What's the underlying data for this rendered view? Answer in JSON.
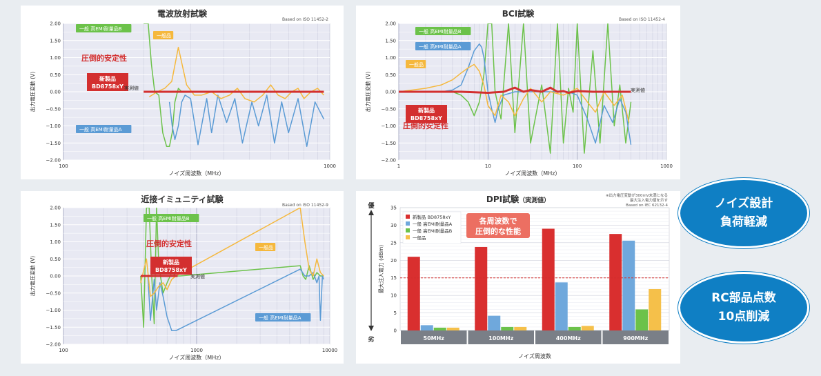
{
  "chart_data": [
    {
      "type": "line",
      "title": "電波放射試験",
      "note": "Based on ISO 11452-2",
      "xlabel": "ノイズ周波数（MHz）",
      "ylabel": "出力電圧変動 (V)",
      "x_scale": "log",
      "xlim": [
        100,
        1000
      ],
      "ylim": [
        -2.0,
        2.0
      ],
      "x_ticks": [
        "100",
        "1000"
      ],
      "y_ticks": [
        "2.00",
        "1.50",
        "1.00",
        "0.50",
        "0.00",
        "−0.50",
        "−1.00",
        "−1.50",
        "−2.00"
      ],
      "callouts": {
        "stable": "圧倒的安定性",
        "new_product": "新製品\nBD8758xY",
        "measured": "実測値"
      },
      "series": [
        {
          "name": "一般 高EMI耐量品B",
          "color": "#6cc24a",
          "x": [
            200,
            208,
            214,
            220,
            228,
            236,
            244,
            250,
            256,
            262,
            270,
            278,
            286,
            300,
            320,
            345,
            360,
            380,
            410,
            440,
            470,
            510,
            540,
            580,
            620,
            660,
            700,
            760,
            820,
            880,
            950
          ],
          "y": [
            2.0,
            2.0,
            0.8,
            0.0,
            -0.1,
            -1.2,
            -1.6,
            -1.6,
            -1.2,
            -0.3,
            0.1,
            0.0,
            0.0,
            0.0,
            0.0,
            0.0,
            0.0,
            0.0,
            0.0,
            0.0,
            0.0,
            0.0,
            0.0,
            0.0,
            0.0,
            0.0,
            0.0,
            0.0,
            0.0,
            0.0,
            0.0
          ]
        },
        {
          "name": "一般 高EMI耐量品A",
          "color": "#5b9bd5",
          "x": [
            250,
            256,
            262,
            270,
            278,
            286,
            300,
            320,
            345,
            360,
            380,
            410,
            440,
            470,
            510,
            540,
            580,
            620,
            660,
            700,
            760,
            820,
            880,
            950
          ],
          "y": [
            -0.3,
            -1.0,
            -1.4,
            -1.0,
            -0.3,
            -0.1,
            -0.2,
            -1.55,
            -0.2,
            -1.2,
            -0.1,
            -0.9,
            -0.2,
            -1.5,
            -0.3,
            -1.0,
            -0.1,
            -1.5,
            -0.3,
            -1.2,
            -0.2,
            -1.6,
            -0.3,
            -0.8
          ]
        },
        {
          "name": "一般品",
          "color": "#f5b83d",
          "x": [
            210,
            225,
            240,
            255,
            270,
            290,
            310,
            330,
            360,
            390,
            420,
            450,
            480,
            520,
            560,
            600,
            640,
            680,
            720,
            760,
            800,
            850,
            900,
            950
          ],
          "y": [
            -0.15,
            0.0,
            0.1,
            0.3,
            1.3,
            0.2,
            -0.1,
            -0.1,
            0.0,
            -0.2,
            -0.1,
            0.1,
            -0.2,
            -0.3,
            -0.1,
            0.2,
            -0.1,
            -0.2,
            0.0,
            0.1,
            -0.2,
            0.0,
            0.1,
            -0.1
          ]
        },
        {
          "name": "新製品 BD8758xY",
          "color": "#d32f2f",
          "x": [
            200,
            950
          ],
          "y": [
            0.0,
            0.0
          ]
        }
      ]
    },
    {
      "type": "line",
      "title": "BCI試験",
      "note": "Based on ISO 11452-4",
      "xlabel": "ノイズ周波数（MHz）",
      "ylabel": "出力電圧変動 (V)",
      "x_scale": "log",
      "xlim": [
        1,
        1000
      ],
      "ylim": [
        -2.0,
        2.0
      ],
      "x_ticks": [
        "1",
        "10",
        "100",
        "1000"
      ],
      "y_ticks": [
        "2.00",
        "1.50",
        "1.00",
        "0.50",
        "0.00",
        "−0.50",
        "−1.00",
        "−1.50",
        "−2.00"
      ],
      "callouts": {
        "stable": "圧倒的安定性",
        "new_product": "新製品\nBD8758xY",
        "measured": "実測値"
      },
      "series": [
        {
          "name": "一般 高EMI耐量品B",
          "color": "#6cc24a",
          "x": [
            1,
            2,
            3,
            4,
            5,
            6,
            7,
            8,
            9,
            10,
            11,
            12,
            14,
            17,
            20,
            25,
            30,
            40,
            50,
            60,
            70,
            80,
            90,
            100,
            120,
            150,
            180,
            220,
            260,
            300,
            350,
            400
          ],
          "y": [
            0.0,
            0.0,
            0.0,
            0.0,
            -0.1,
            -0.3,
            -0.7,
            -0.3,
            0.5,
            2.0,
            2.0,
            0.0,
            -0.8,
            2.0,
            -1.2,
            2.0,
            -1.5,
            0.2,
            -1.8,
            2.0,
            -1.5,
            0.1,
            -0.6,
            2.0,
            -1.8,
            1.2,
            -1.5,
            2.0,
            -1.0,
            0.2,
            -1.5,
            -0.3
          ]
        },
        {
          "name": "一般 高EMI耐量品A",
          "color": "#5b9bd5",
          "x": [
            2,
            3,
            4,
            5,
            6,
            7,
            8,
            8.5,
            9,
            9.5,
            10,
            11,
            12,
            13,
            15,
            20,
            30,
            50,
            80,
            100,
            130,
            160,
            200,
            250,
            300,
            350,
            400
          ],
          "y": [
            0.0,
            0.0,
            0.05,
            0.2,
            0.7,
            1.2,
            1.4,
            1.3,
            1.0,
            0.5,
            0.0,
            -0.5,
            -0.9,
            -0.5,
            -0.1,
            0.0,
            0.0,
            0.0,
            0.0,
            -0.1,
            -0.8,
            -1.5,
            -0.4,
            -0.9,
            -0.2,
            -0.6,
            -1.55
          ]
        },
        {
          "name": "一般品",
          "color": "#f5b83d",
          "x": [
            1,
            2,
            3,
            4,
            5,
            6,
            7,
            8,
            9,
            10,
            12,
            14,
            17,
            20,
            25,
            30,
            40,
            50,
            70,
            100,
            130,
            160,
            200,
            260,
            320,
            380
          ],
          "y": [
            0.0,
            0.1,
            0.2,
            0.35,
            0.55,
            0.7,
            0.8,
            0.6,
            0.2,
            -0.4,
            -0.7,
            -0.1,
            -0.3,
            -0.7,
            -0.2,
            0.1,
            -0.3,
            0.0,
            -0.1,
            0.1,
            -0.3,
            -0.6,
            0.0,
            -0.4,
            -0.1,
            -0.9
          ]
        },
        {
          "name": "新製品 BD8758xY",
          "color": "#d32f2f",
          "x": [
            1,
            5,
            10,
            15,
            20,
            25,
            30,
            40,
            50,
            60,
            70,
            80,
            100,
            150,
            200,
            300,
            400
          ],
          "y": [
            0.0,
            0.0,
            -0.03,
            0.0,
            0.12,
            0.0,
            0.05,
            0.0,
            0.12,
            0.0,
            0.02,
            -0.03,
            0.02,
            0.0,
            0.0,
            0.0,
            0.0
          ]
        }
      ]
    },
    {
      "type": "line",
      "title": "近接イミュニティ試験",
      "note": "Based on ISO 11452-9",
      "xlabel": "ノイズ周波数（MHz）",
      "ylabel": "出力電圧変動 (V)",
      "x_scale": "log",
      "xlim": [
        100,
        10000
      ],
      "ylim": [
        -2.0,
        2.0
      ],
      "x_ticks": [
        "100",
        "1000",
        "10000"
      ],
      "y_ticks": [
        "2.00",
        "1.50",
        "1.00",
        "0.50",
        "0.00",
        "−0.50",
        "−1.00",
        "−1.50",
        "−2.00"
      ],
      "callouts": {
        "stable": "圧倒的安定性",
        "new_product": "新製品\nBD8758xY",
        "measured": "実測値"
      },
      "series": [
        {
          "name": "一般 高EMI耐量品B",
          "color": "#6cc24a",
          "x": [
            380,
            400,
            420,
            440,
            460,
            480,
            500,
            520,
            560,
            600,
            650,
            700,
            750,
            6000,
            6300,
            6600,
            7000,
            7500,
            8000,
            8500,
            9000
          ],
          "y": [
            0.0,
            -1.5,
            2.0,
            2.0,
            0.0,
            -1.4,
            2.0,
            0.3,
            -0.5,
            -0.2,
            0.1,
            0.0,
            0.0,
            0.3,
            0.0,
            -0.1,
            0.3,
            -0.1,
            0.1,
            0.0,
            0.0
          ]
        },
        {
          "name": "一般 高EMI耐量品A",
          "color": "#5b9bd5",
          "x": [
            430,
            450,
            480,
            500,
            530,
            560,
            600,
            650,
            700,
            6000,
            6500,
            7000,
            7500,
            8000,
            8300,
            8500,
            8800,
            9000
          ],
          "y": [
            0.0,
            -1.3,
            -0.1,
            -1.0,
            -0.2,
            -0.6,
            -1.2,
            -1.6,
            -1.6,
            0.2,
            0.0,
            0.0,
            0.1,
            -0.2,
            0.0,
            -1.3,
            0.0,
            -0.1
          ]
        },
        {
          "name": "一般品",
          "color": "#f5b83d",
          "x": [
            380,
            420,
            450,
            480,
            520,
            560,
            600,
            650,
            700,
            6000,
            6500,
            7000,
            7500,
            8000,
            8500,
            9000
          ],
          "y": [
            -0.2,
            0.5,
            -0.6,
            -0.5,
            -0.3,
            -0.2,
            -0.4,
            -0.1,
            0.0,
            2.0,
            1.0,
            0.2,
            0.0,
            0.5,
            0.1,
            0.0
          ]
        },
        {
          "name": "新製品 BD8758xY",
          "color": "#d32f2f",
          "x": [
            380,
            480,
            600,
            720
          ],
          "y": [
            0.0,
            0.0,
            0.0,
            0.0
          ]
        }
      ]
    },
    {
      "type": "bar",
      "title": "DPI試験",
      "title_suffix": "（実測値）",
      "note": "※出力電圧変動が300mV未満となる\n最大注入電力値を示す\nBased on IEC 62132-4",
      "xlabel": "ノイズ周波数",
      "ylabel": "最大注入電力 (dBm)",
      "ylim": [
        0,
        35
      ],
      "y_ticks": [
        "0",
        "5",
        "10",
        "15",
        "20",
        "25",
        "30",
        "35"
      ],
      "threshold": 15,
      "axis_top_label": "優",
      "axis_bottom_label": "劣",
      "callout": "各周波数で\n圧倒的な性能",
      "categories": [
        "50MHz",
        "100MHz",
        "400MHz",
        "900MHz"
      ],
      "series": [
        {
          "name": "新製品 BD8758xY",
          "color": "#d92f2f",
          "values": [
            21,
            23.8,
            29,
            27.5
          ]
        },
        {
          "name": "一般 高EMI耐量品A",
          "color": "#6fa8dc",
          "values": [
            1.5,
            4.2,
            13.7,
            25.6
          ]
        },
        {
          "name": "一般 高EMI耐量品B",
          "color": "#6cc24a",
          "values": [
            0.8,
            1.0,
            1.0,
            6.0
          ]
        },
        {
          "name": "一般品",
          "color": "#f5c04a",
          "values": [
            0.8,
            1.0,
            1.3,
            11.8
          ]
        }
      ]
    }
  ],
  "badges": [
    {
      "line1": "ノイズ設計",
      "line2": "負荷軽減"
    },
    {
      "line1": "RC部品点数",
      "line2": "10点削減"
    }
  ]
}
